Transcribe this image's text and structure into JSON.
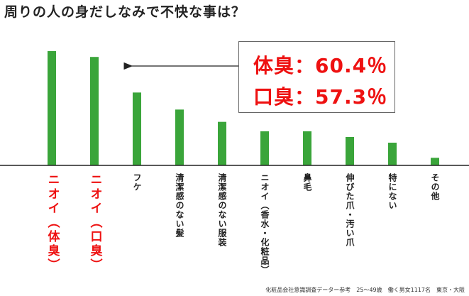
{
  "title": "周りの人の身だしなみで不快な事は？",
  "callout": {
    "line1": "体臭：60.4％",
    "line2": "口臭：57.3％"
  },
  "source": "化粧品会社意識調査データー参考　25～49歳　働く男女1117名　東京・大阪",
  "colors": {
    "bar": "#3aa53a",
    "highlight": "#ee1111",
    "baseline": "#222222"
  },
  "chart_data": {
    "type": "bar",
    "title": "周りの人の身だしなみで不快な事は？",
    "categories": [
      "ニオイ（体臭）",
      "ニオイ（口臭）",
      "フケ",
      "清潔感のない髪",
      "清潔感のない服装",
      "ニオイ（香水・化粧品）",
      "鼻毛",
      "伸びた爪・汚い爪",
      "特にない",
      "その他"
    ],
    "values": [
      60.4,
      57.3,
      38.5,
      29.5,
      23,
      18,
      18,
      15,
      12,
      4
    ],
    "ylim": [
      0,
      66
    ],
    "highlight": [
      0,
      1
    ],
    "grid": false
  }
}
